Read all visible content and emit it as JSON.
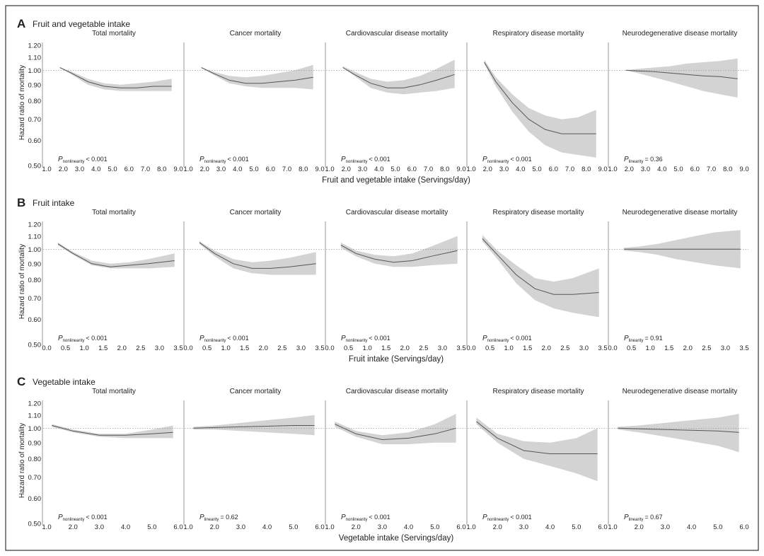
{
  "figure": {
    "frame_color": "#333333",
    "band_color": "#d3d3d3",
    "line_color": "#555555"
  },
  "chart_data": [
    {
      "panel": "A",
      "type": "line",
      "title": "Fruit and vegetable intake",
      "xlabel": "Fruit and vegetable intake (Servings/day)",
      "ylabel": "Hazard ratio of mortality",
      "xlim": [
        1.0,
        9.0
      ],
      "xticks": [
        "1.0",
        "2.0",
        "3.0",
        "4.0",
        "5.0",
        "6.0",
        "7.0",
        "8.0",
        "9.0"
      ],
      "xtick_values": [
        1,
        2,
        3,
        4,
        5,
        6,
        7,
        8,
        9
      ],
      "ylim": [
        0.5,
        1.25
      ],
      "yticks": [
        "0.50",
        "0.60",
        "0.70",
        "0.80",
        "0.90",
        "1.00",
        "1.10",
        "1.20"
      ],
      "ytick_values": [
        0.5,
        0.6,
        0.7,
        0.8,
        0.9,
        1.0,
        1.1,
        1.2
      ],
      "reference_y": 1.0,
      "subplots": [
        {
          "title": "Total mortality",
          "p_sub": "nonlinearity",
          "p_rest": "< 0.001",
          "x": [
            1.8,
            2.5,
            3.5,
            4.5,
            5.5,
            6.5,
            7.5,
            8.6
          ],
          "y": [
            1.02,
            0.98,
            0.92,
            0.89,
            0.88,
            0.88,
            0.89,
            0.89
          ],
          "lower": [
            1.02,
            0.97,
            0.9,
            0.87,
            0.86,
            0.86,
            0.86,
            0.86
          ],
          "upper": [
            1.02,
            0.99,
            0.94,
            0.91,
            0.9,
            0.91,
            0.92,
            0.94
          ]
        },
        {
          "title": "Cancer mortality",
          "p_sub": "nonlinearity",
          "p_rest": "< 0.001",
          "x": [
            1.8,
            2.5,
            3.5,
            4.5,
            5.5,
            6.5,
            7.5,
            8.6
          ],
          "y": [
            1.02,
            0.98,
            0.93,
            0.91,
            0.91,
            0.92,
            0.93,
            0.95
          ],
          "lower": [
            1.02,
            0.97,
            0.91,
            0.89,
            0.88,
            0.88,
            0.88,
            0.87
          ],
          "upper": [
            1.02,
            0.99,
            0.96,
            0.95,
            0.96,
            0.98,
            1.0,
            1.04
          ]
        },
        {
          "title": "Cardiovascular disease mortality",
          "p_sub": "nonlinearity",
          "p_rest": "< 0.001",
          "x": [
            1.8,
            2.5,
            3.5,
            4.5,
            5.5,
            6.5,
            7.5,
            8.6
          ],
          "y": [
            1.02,
            0.97,
            0.91,
            0.88,
            0.88,
            0.9,
            0.93,
            0.97
          ],
          "lower": [
            1.02,
            0.96,
            0.88,
            0.85,
            0.84,
            0.85,
            0.86,
            0.88
          ],
          "upper": [
            1.03,
            0.99,
            0.94,
            0.92,
            0.93,
            0.96,
            1.01,
            1.08
          ]
        },
        {
          "title": "Respiratory disease mortality",
          "p_sub": "nonlinearity",
          "p_rest": "< 0.001",
          "x": [
            1.8,
            2.5,
            3.5,
            4.5,
            5.5,
            6.5,
            7.5,
            8.6
          ],
          "y": [
            1.06,
            0.92,
            0.79,
            0.7,
            0.65,
            0.63,
            0.63,
            0.63
          ],
          "lower": [
            1.05,
            0.89,
            0.74,
            0.64,
            0.58,
            0.55,
            0.54,
            0.53
          ],
          "upper": [
            1.08,
            0.95,
            0.84,
            0.76,
            0.72,
            0.7,
            0.71,
            0.75
          ]
        },
        {
          "title": "Neurodegenerative disease mortality",
          "p_sub": "linearity",
          "p_rest": "= 0.36",
          "x": [
            1.8,
            2.5,
            3.5,
            4.5,
            5.5,
            6.5,
            7.5,
            8.6
          ],
          "y": [
            1.0,
            0.995,
            0.99,
            0.98,
            0.97,
            0.96,
            0.955,
            0.94
          ],
          "lower": [
            1.0,
            0.98,
            0.95,
            0.92,
            0.89,
            0.86,
            0.84,
            0.82
          ],
          "upper": [
            1.0,
            1.01,
            1.02,
            1.03,
            1.05,
            1.06,
            1.07,
            1.09
          ]
        }
      ]
    },
    {
      "panel": "B",
      "type": "line",
      "title": "Fruit intake",
      "xlabel": "Fruit intake (Servings/day)",
      "ylabel": "Hazard ratio of mortality",
      "xlim": [
        0.0,
        3.5
      ],
      "xticks": [
        "0.0",
        "0.5",
        "1.0",
        "1.5",
        "2.0",
        "2.5",
        "3.0",
        "3.5"
      ],
      "xtick_values": [
        0,
        0.5,
        1,
        1.5,
        2,
        2.5,
        3,
        3.5
      ],
      "ylim": [
        0.5,
        1.25
      ],
      "yticks": [
        "0.50",
        "0.60",
        "0.70",
        "0.80",
        "0.90",
        "1.00",
        "1.10",
        "1.20"
      ],
      "ytick_values": [
        0.5,
        0.6,
        0.7,
        0.8,
        0.9,
        1.0,
        1.1,
        1.2
      ],
      "reference_y": 1.0,
      "subplots": [
        {
          "title": "Total mortality",
          "p_sub": "nonlinearity",
          "p_rest": "< 0.001",
          "x": [
            0.3,
            0.7,
            1.2,
            1.7,
            2.2,
            2.7,
            3.4
          ],
          "y": [
            1.04,
            0.97,
            0.9,
            0.88,
            0.89,
            0.9,
            0.92
          ],
          "lower": [
            1.03,
            0.96,
            0.89,
            0.87,
            0.87,
            0.87,
            0.88
          ],
          "upper": [
            1.05,
            0.98,
            0.92,
            0.9,
            0.91,
            0.93,
            0.97
          ]
        },
        {
          "title": "Cancer mortality",
          "p_sub": "nonlinearity",
          "p_rest": "< 0.001",
          "x": [
            0.3,
            0.7,
            1.2,
            1.7,
            2.2,
            2.7,
            3.4
          ],
          "y": [
            1.05,
            0.97,
            0.9,
            0.87,
            0.87,
            0.88,
            0.9
          ],
          "lower": [
            1.04,
            0.95,
            0.87,
            0.84,
            0.83,
            0.83,
            0.83
          ],
          "upper": [
            1.06,
            0.99,
            0.93,
            0.91,
            0.92,
            0.94,
            0.98
          ]
        },
        {
          "title": "Cardiovascular disease mortality",
          "p_sub": "nonlinearity",
          "p_rest": "< 0.001",
          "x": [
            0.3,
            0.7,
            1.2,
            1.7,
            2.2,
            2.7,
            3.4
          ],
          "y": [
            1.03,
            0.97,
            0.93,
            0.91,
            0.92,
            0.95,
            0.99
          ],
          "lower": [
            1.01,
            0.95,
            0.9,
            0.88,
            0.88,
            0.89,
            0.9
          ],
          "upper": [
            1.05,
            0.99,
            0.96,
            0.95,
            0.97,
            1.02,
            1.1
          ]
        },
        {
          "title": "Respiratory disease mortality",
          "p_sub": "nonlinearity",
          "p_rest": "< 0.001",
          "x": [
            0.3,
            0.7,
            1.2,
            1.7,
            2.2,
            2.7,
            3.4
          ],
          "y": [
            1.08,
            0.96,
            0.83,
            0.75,
            0.72,
            0.72,
            0.73
          ],
          "lower": [
            1.06,
            0.93,
            0.78,
            0.69,
            0.65,
            0.63,
            0.61
          ],
          "upper": [
            1.11,
            0.99,
            0.89,
            0.81,
            0.79,
            0.81,
            0.87
          ]
        },
        {
          "title": "Neurodegenerative disease mortality",
          "p_sub": "linearity",
          "p_rest": "= 0.91",
          "x": [
            0.3,
            0.7,
            1.2,
            1.7,
            2.2,
            2.7,
            3.4
          ],
          "y": [
            1.0,
            1.0,
            1.0,
            1.0,
            1.0,
            1.0,
            1.0
          ],
          "lower": [
            0.99,
            0.98,
            0.96,
            0.93,
            0.91,
            0.89,
            0.87
          ],
          "upper": [
            1.01,
            1.02,
            1.04,
            1.07,
            1.1,
            1.13,
            1.15
          ]
        }
      ]
    },
    {
      "panel": "C",
      "type": "line",
      "title": "Vegetable intake",
      "xlabel": "Vegetable intake (Servings/day)",
      "ylabel": "Hazard ratio of mortality",
      "xlim": [
        1.0,
        6.0
      ],
      "xticks": [
        "1.0",
        "2.0",
        "3.0",
        "4.0",
        "5.0",
        "6.0"
      ],
      "xtick_values": [
        1,
        2,
        3,
        4,
        5,
        6
      ],
      "ylim": [
        0.5,
        1.25
      ],
      "yticks": [
        "0.50",
        "0.60",
        "0.70",
        "0.80",
        "0.90",
        "1.00",
        "1.10",
        "1.20"
      ],
      "ytick_values": [
        0.5,
        0.6,
        0.7,
        0.8,
        0.9,
        1.0,
        1.1,
        1.2
      ],
      "reference_y": 1.0,
      "subplots": [
        {
          "title": "Total mortality",
          "p_sub": "nonlinearity",
          "p_rest": "< 0.001",
          "x": [
            1.2,
            2.0,
            3.0,
            4.0,
            5.0,
            5.8
          ],
          "y": [
            1.02,
            0.98,
            0.95,
            0.95,
            0.96,
            0.97
          ],
          "lower": [
            1.01,
            0.97,
            0.94,
            0.93,
            0.93,
            0.93
          ],
          "upper": [
            1.03,
            0.99,
            0.96,
            0.96,
            0.99,
            1.02
          ]
        },
        {
          "title": "Cancer mortality",
          "p_sub": "linearity",
          "p_rest": "= 0.62",
          "x": [
            1.2,
            2.0,
            3.0,
            4.0,
            5.0,
            5.8
          ],
          "y": [
            1.0,
            1.005,
            1.01,
            1.015,
            1.02,
            1.02
          ],
          "lower": [
            0.99,
            0.99,
            0.98,
            0.97,
            0.96,
            0.95
          ],
          "upper": [
            1.01,
            1.02,
            1.04,
            1.06,
            1.08,
            1.1
          ]
        },
        {
          "title": "Cardiovascular disease mortality",
          "p_sub": "nonlinearity",
          "p_rest": "< 0.001",
          "x": [
            1.2,
            2.0,
            3.0,
            4.0,
            5.0,
            5.8
          ],
          "y": [
            1.03,
            0.96,
            0.92,
            0.93,
            0.96,
            1.0
          ],
          "lower": [
            1.01,
            0.94,
            0.89,
            0.89,
            0.9,
            0.9
          ],
          "upper": [
            1.05,
            0.98,
            0.95,
            0.97,
            1.03,
            1.11
          ]
        },
        {
          "title": "Respiratory disease mortality",
          "p_sub": "nonlinearity",
          "p_rest": "< 0.001",
          "x": [
            1.2,
            2.0,
            3.0,
            4.0,
            5.0,
            5.8
          ],
          "y": [
            1.05,
            0.93,
            0.85,
            0.83,
            0.83,
            0.83
          ],
          "lower": [
            1.03,
            0.9,
            0.8,
            0.76,
            0.72,
            0.68
          ],
          "upper": [
            1.08,
            0.96,
            0.91,
            0.9,
            0.93,
            1.0
          ]
        },
        {
          "title": "Neurodegenerative disease mortality",
          "p_sub": "linearity",
          "p_rest": "= 0.67",
          "x": [
            1.2,
            2.0,
            3.0,
            4.0,
            5.0,
            5.8
          ],
          "y": [
            1.0,
            0.995,
            0.99,
            0.985,
            0.98,
            0.97
          ],
          "lower": [
            0.99,
            0.97,
            0.94,
            0.91,
            0.88,
            0.84
          ],
          "upper": [
            1.01,
            1.02,
            1.04,
            1.06,
            1.08,
            1.11
          ]
        }
      ]
    }
  ]
}
